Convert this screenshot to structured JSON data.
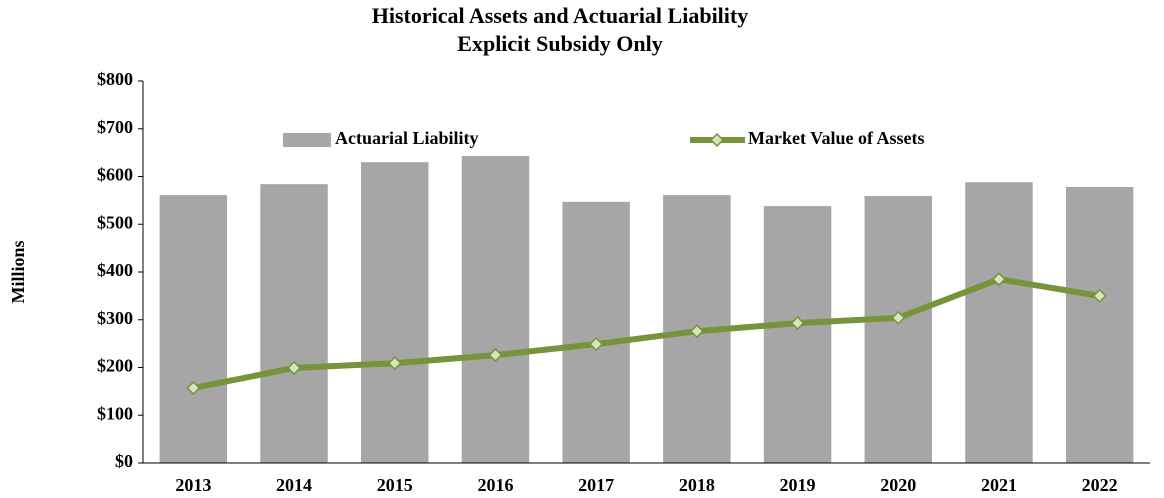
{
  "chart_data": {
    "type": "combo",
    "title": "Historical Assets and Actuarial Liability",
    "subtitle": "Explicit Subsidy Only",
    "y_label": "Millions",
    "categories": [
      "2013",
      "2014",
      "2015",
      "2016",
      "2017",
      "2018",
      "2019",
      "2020",
      "2021",
      "2022"
    ],
    "series": [
      {
        "name": "Actuarial Liability",
        "type": "bar",
        "color": "#a6a6a6",
        "values": [
          561,
          584,
          630,
          643,
          547,
          561,
          538,
          559,
          588,
          578
        ]
      },
      {
        "name": "Market Value of Assets",
        "type": "line",
        "color": "#77933c",
        "marker_color": "#d7e4bd",
        "values": [
          157,
          199,
          209,
          226,
          249,
          276,
          293,
          304,
          385,
          350
        ]
      }
    ],
    "ylim": [
      0,
      800
    ],
    "yticks": [
      {
        "value": 0,
        "label": "$0"
      },
      {
        "value": 100,
        "label": "$100"
      },
      {
        "value": 200,
        "label": "$200"
      },
      {
        "value": 300,
        "label": "$300"
      },
      {
        "value": 400,
        "label": "$400"
      },
      {
        "value": 500,
        "label": "$500"
      },
      {
        "value": 600,
        "label": "$600"
      },
      {
        "value": 700,
        "label": "$700"
      },
      {
        "value": 800,
        "label": "$800"
      }
    ],
    "grid": false,
    "legend": "top"
  }
}
